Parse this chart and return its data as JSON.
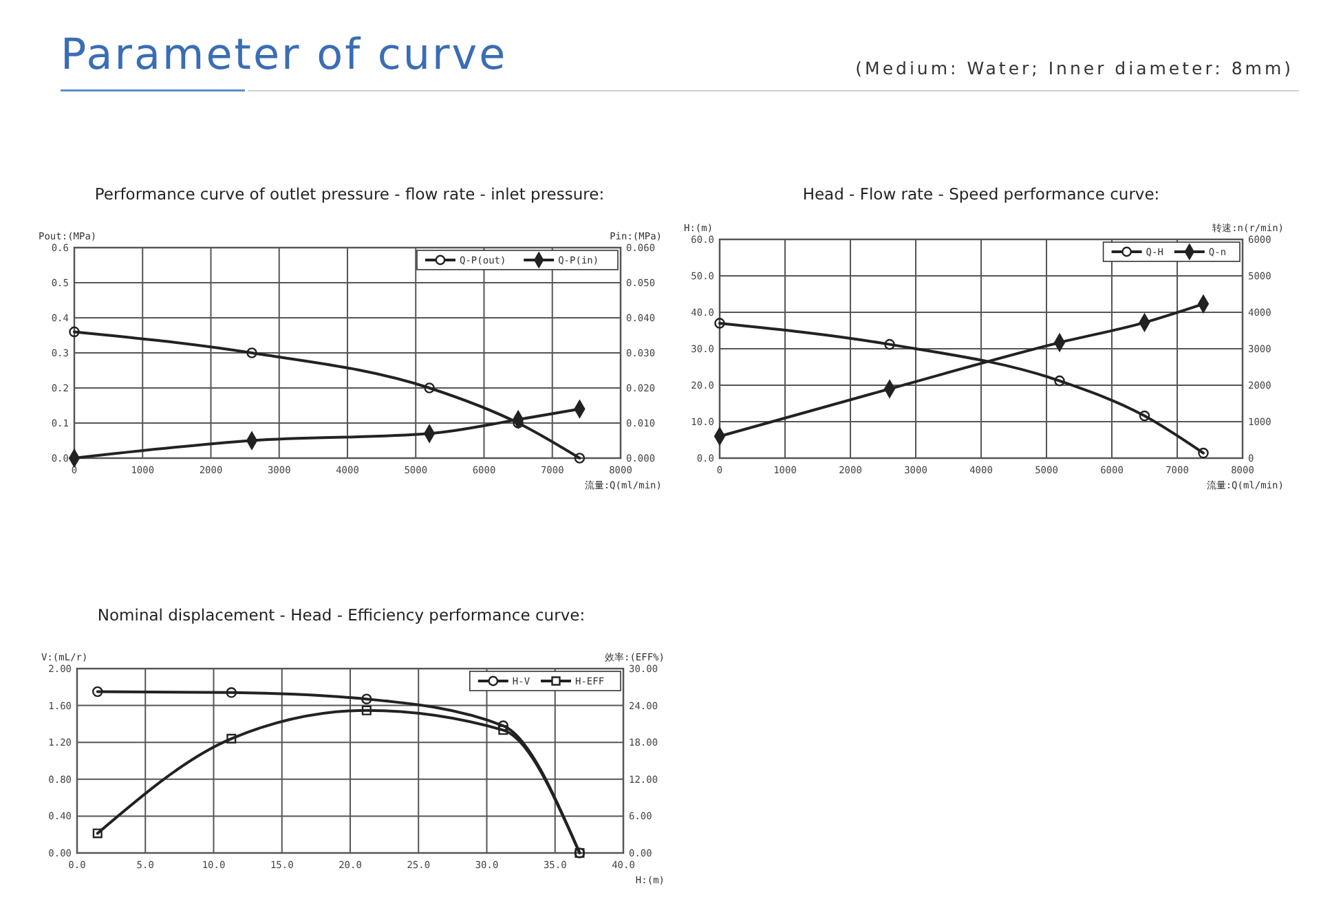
{
  "chart_data": [
    {
      "type": "other",
      "title": "Parameter of curve",
      "subtitle": "(Medium: Water; Inner diameter: 8mm)"
    },
    {
      "type": "line",
      "title": "Performance curve of outlet pressure -  flow rate - inlet pressure:",
      "xlabel": "流量:Q(ml/min)",
      "ylabel": "Pout:(MPa)",
      "y2label": "Pin:(MPa)",
      "xlim": [
        0,
        8000
      ],
      "xticks": [
        0,
        1000,
        2000,
        3000,
        4000,
        5000,
        6000,
        7000,
        8000
      ],
      "ylim": [
        0,
        0.6
      ],
      "yticks": [
        {
          "value": 0,
          "label": "0.0"
        },
        0.1,
        0.2,
        0.3,
        0.4,
        0.5,
        0.6
      ],
      "y2lim": [
        0,
        0.06
      ],
      "y2ticks": [
        {
          "value": 0,
          "label": "0.000"
        },
        {
          "value": 0.01,
          "label": "0.010"
        },
        {
          "value": 0.02,
          "label": "0.020"
        },
        {
          "value": 0.03,
          "label": "0.030"
        },
        {
          "value": 0.04,
          "label": "0.040"
        },
        {
          "value": 0.05,
          "label": "0.050"
        },
        {
          "value": 0.06,
          "label": "0.060"
        }
      ],
      "grid": true,
      "legend": "top right",
      "line_style": "solid",
      "x": [
        0,
        2600,
        5200,
        6500,
        7400
      ],
      "series": [
        {
          "name": "Q-P(out)",
          "color": "#222222",
          "marker": "circle",
          "values": [
            0.36,
            0.3,
            0.2,
            0.1,
            0
          ]
        },
        {
          "name": "Q-P(in)",
          "color": "#222222",
          "marker": "diamond",
          "axis": "y2",
          "values": [
            0,
            0.005,
            0.007,
            0.011,
            0.014
          ]
        }
      ]
    },
    {
      "type": "line",
      "title": "Head - Flow rate - Speed performance curve:",
      "xlabel": "流量:Q(ml/min)",
      "ylabel": "H:(m)",
      "y2label": "转速:n(r/min)",
      "xlim": [
        0,
        8000
      ],
      "xticks": [
        0,
        1000,
        2000,
        3000,
        4000,
        5000,
        6000,
        7000,
        8000
      ],
      "ylim": [
        0,
        60
      ],
      "yticks": [
        {
          "value": 0,
          "label": "0.0"
        },
        {
          "value": 10,
          "label": "10.0"
        },
        {
          "value": 20,
          "label": "20.0"
        },
        {
          "value": 30,
          "label": "30.0"
        },
        {
          "value": 40,
          "label": "40.0"
        },
        {
          "value": 50,
          "label": "50.0"
        },
        {
          "value": 60,
          "label": "60.0"
        }
      ],
      "y2lim": [
        0,
        6000
      ],
      "y2ticks": [
        0,
        1000,
        2000,
        3000,
        4000,
        5000,
        6000
      ],
      "grid": true,
      "legend": "top right",
      "line_style": "solid",
      "x": [
        0,
        2600,
        5200,
        6500,
        7400
      ],
      "series": [
        {
          "name": "Q-H",
          "color": "#222222",
          "marker": "circle",
          "values": [
            37.0,
            31.2,
            21.2,
            11.6,
            1.4
          ]
        },
        {
          "name": "Q-n",
          "color": "#222222",
          "marker": "diamond",
          "axis": "y2",
          "values": [
            600,
            1900,
            3170,
            3720,
            4230
          ]
        }
      ]
    },
    {
      "type": "line",
      "title": "Nominal displacement - Head - Efficiency performance curve:",
      "xlabel": "H:(m)",
      "ylabel": "V:(mL/r)",
      "y2label": "效率:(EFF%)",
      "xlim": [
        0,
        40
      ],
      "xticks": [
        {
          "value": 0,
          "label": "0.0"
        },
        {
          "value": 5,
          "label": "5.0"
        },
        {
          "value": 10,
          "label": "10.0"
        },
        {
          "value": 15,
          "label": "15.0"
        },
        {
          "value": 20,
          "label": "20.0"
        },
        {
          "value": 25,
          "label": "25.0"
        },
        {
          "value": 30,
          "label": "30.0"
        },
        {
          "value": 35,
          "label": "35.0"
        },
        {
          "value": 40,
          "label": "40.0"
        }
      ],
      "ylim": [
        0,
        2
      ],
      "yticks": [
        {
          "value": 0,
          "label": "0.00"
        },
        {
          "value": 0.4,
          "label": "0.40"
        },
        {
          "value": 0.8,
          "label": "0.80"
        },
        {
          "value": 1.2,
          "label": "1.20"
        },
        {
          "value": 1.6,
          "label": "1.60"
        },
        {
          "value": 2,
          "label": "2.00"
        }
      ],
      "y2lim": [
        0,
        30
      ],
      "y2ticks": [
        {
          "value": 0,
          "label": "0.00"
        },
        {
          "value": 6,
          "label": "6.00"
        },
        {
          "value": 12,
          "label": "12.00"
        },
        {
          "value": 18,
          "label": "18.00"
        },
        {
          "value": 24,
          "label": "24.00"
        },
        {
          "value": 30,
          "label": "30.00"
        }
      ],
      "grid": true,
      "legend": "top right",
      "line_style": "solid",
      "x": [
        1.5,
        11.3,
        21.2,
        31.2,
        36.8
      ],
      "series": [
        {
          "name": "H-V",
          "color": "#222222",
          "marker": "circle",
          "values": [
            1.75,
            1.74,
            1.67,
            1.38,
            0
          ]
        },
        {
          "name": "H-EFF",
          "color": "#222222",
          "marker": "square",
          "axis": "y2",
          "values": [
            3.2,
            18.6,
            23.2,
            20.0,
            0
          ]
        }
      ]
    }
  ]
}
